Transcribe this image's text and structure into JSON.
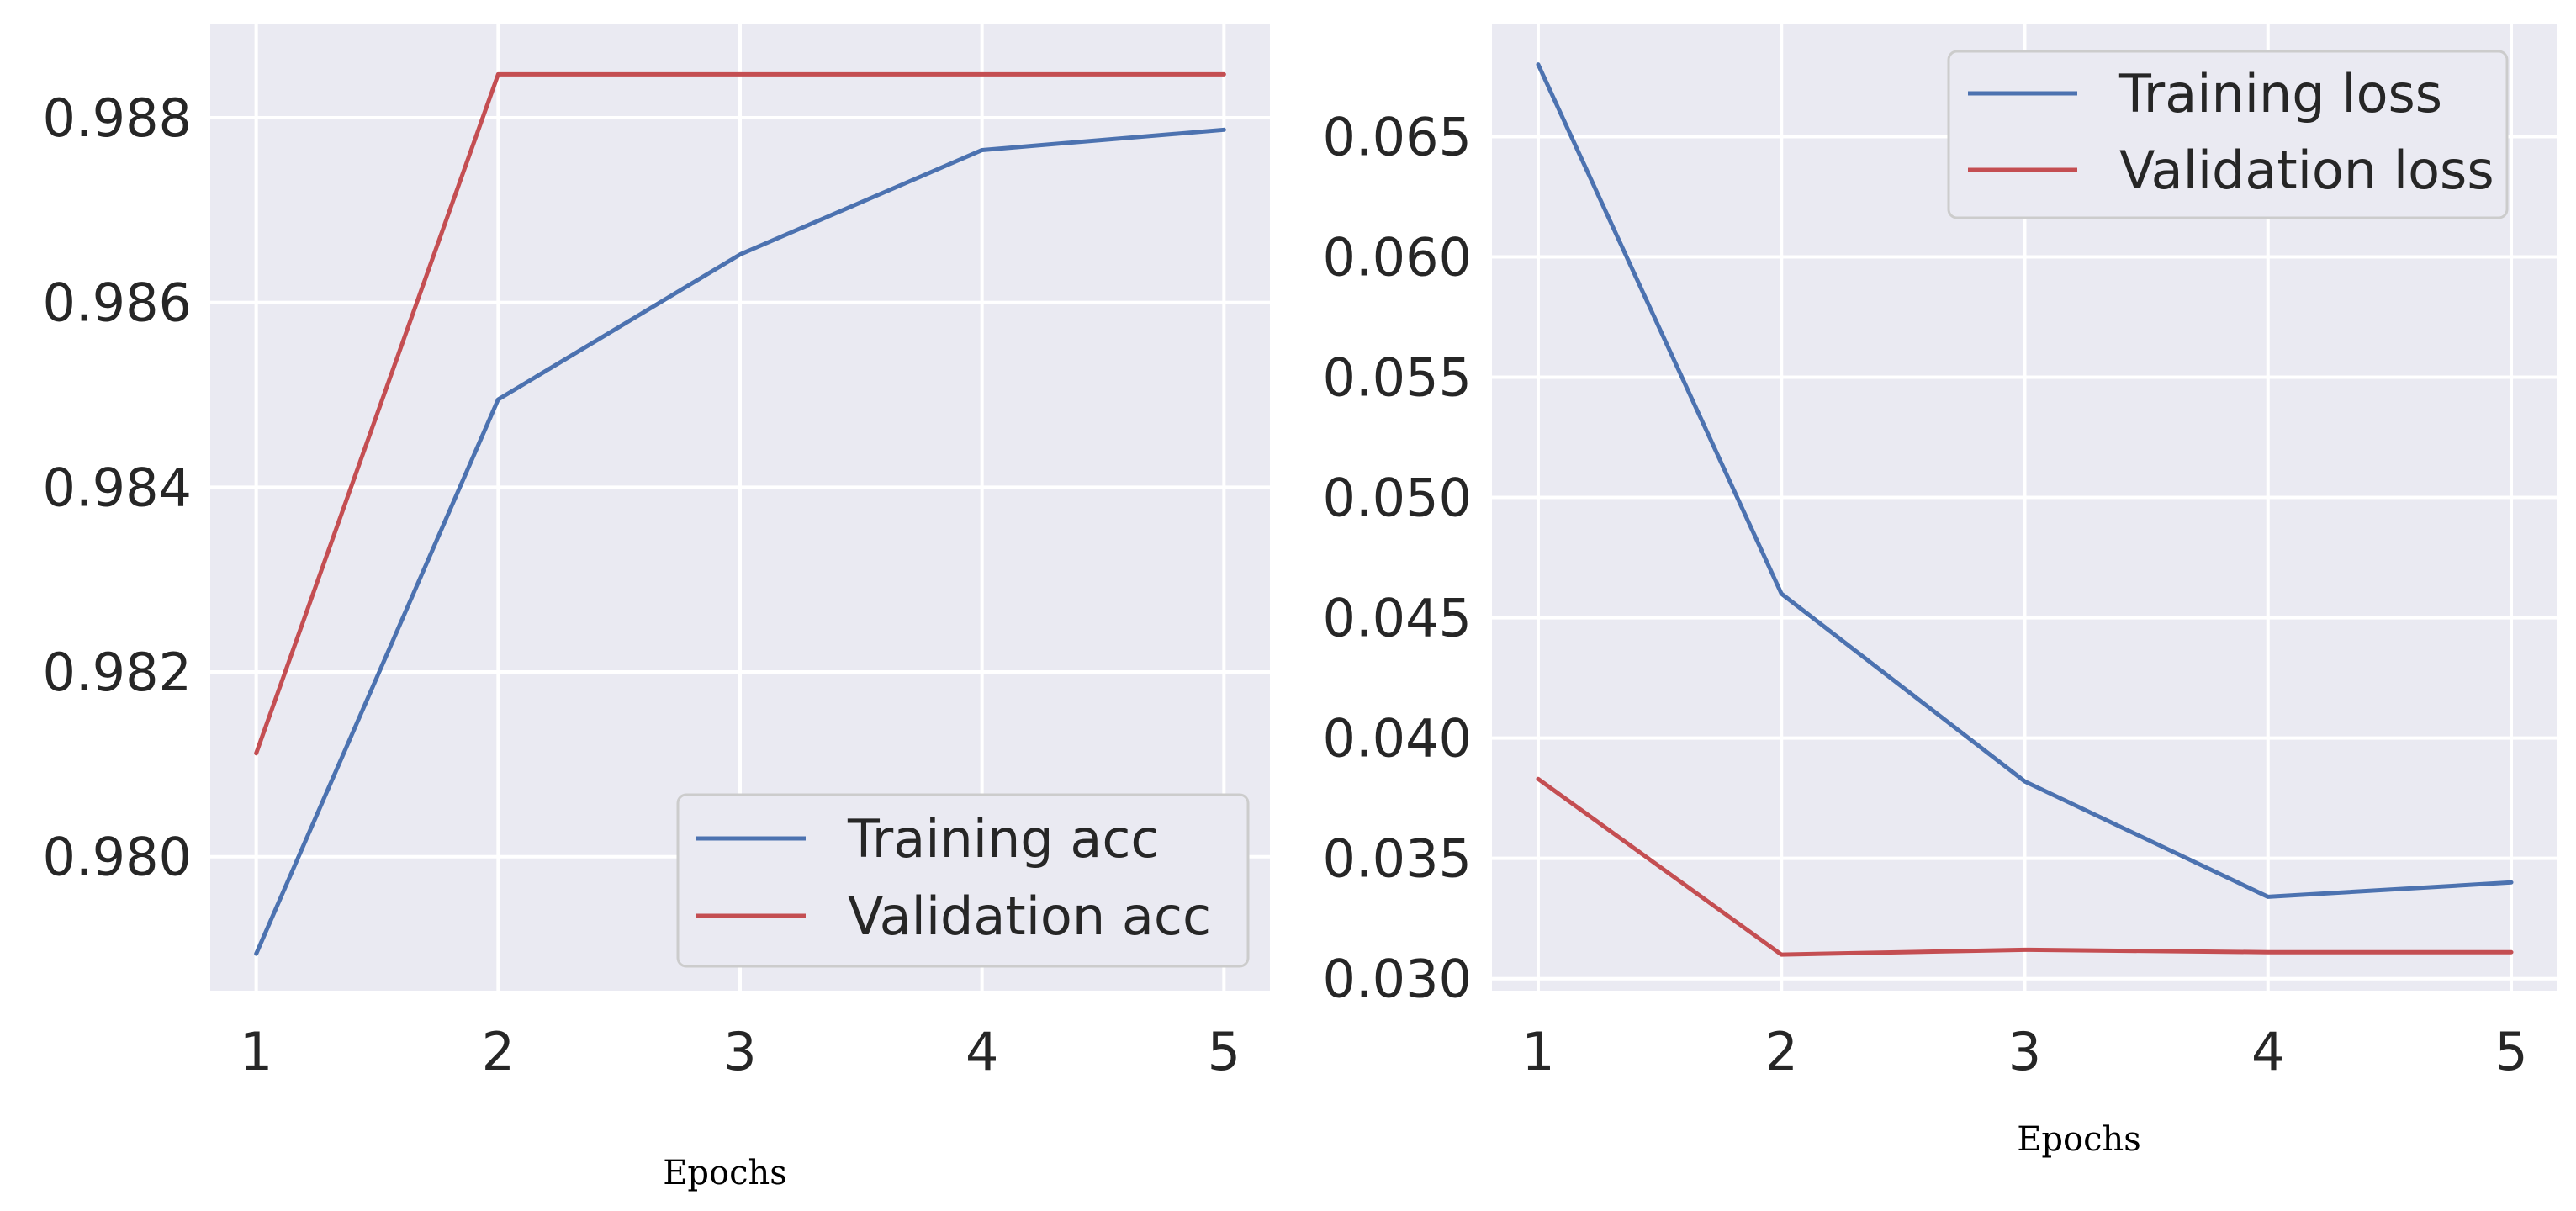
{
  "chart_data": [
    {
      "type": "line",
      "title": "",
      "xlabel": "Epochs",
      "ylabel": "",
      "x": [
        1,
        2,
        3,
        4,
        5
      ],
      "xticks": [
        "1",
        "2",
        "3",
        "4",
        "5"
      ],
      "yticks": [
        "0.980",
        "0.982",
        "0.984",
        "0.986",
        "0.988"
      ],
      "ytick_values": [
        0.98,
        0.982,
        0.984,
        0.986,
        0.988
      ],
      "xlim": [
        0.81,
        5.19
      ],
      "ylim": [
        0.97855,
        0.98902
      ],
      "grid": true,
      "legend_position": "lower-right",
      "series": [
        {
          "name": "Training acc",
          "color": "#4C72B0",
          "values": [
            0.97895,
            0.98495,
            0.98652,
            0.98765,
            0.98787
          ]
        },
        {
          "name": "Validation acc",
          "color": "#C44E52",
          "values": [
            0.98112,
            0.98847,
            0.98847,
            0.98847,
            0.98847
          ]
        }
      ]
    },
    {
      "type": "line",
      "title": "",
      "xlabel": "Epochs",
      "ylabel": "",
      "x": [
        1,
        2,
        3,
        4,
        5
      ],
      "xticks": [
        "1",
        "2",
        "3",
        "4",
        "5"
      ],
      "yticks": [
        "0.030",
        "0.035",
        "0.040",
        "0.045",
        "0.050",
        "0.055",
        "0.060",
        "0.065"
      ],
      "ytick_values": [
        0.03,
        0.035,
        0.04,
        0.045,
        0.05,
        0.055,
        0.06,
        0.065
      ],
      "xlim": [
        0.81,
        5.19
      ],
      "ylim": [
        0.0295,
        0.0697
      ],
      "grid": true,
      "legend_position": "upper-right",
      "series": [
        {
          "name": "Training loss",
          "color": "#4C72B0",
          "values": [
            0.068,
            0.046,
            0.0382,
            0.0334,
            0.034
          ]
        },
        {
          "name": "Validation loss",
          "color": "#C44E52",
          "values": [
            0.0383,
            0.031,
            0.0312,
            0.0311,
            0.0311
          ]
        }
      ]
    }
  ]
}
